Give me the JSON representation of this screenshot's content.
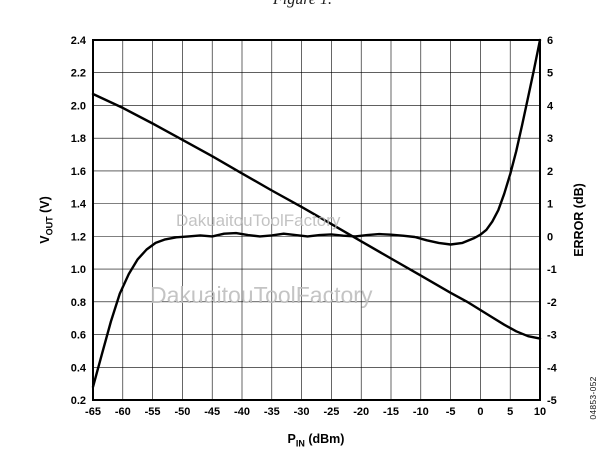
{
  "figure_number": "04853-052",
  "watermarks": [
    "DakuaitouToolFactory",
    "DakuaitouToolFactory"
  ],
  "chart_data": {
    "type": "line",
    "title": "Figure 1.",
    "xlabel": {
      "main": "P",
      "sub": "IN",
      "rest": " (dBm)"
    },
    "ylabel_left": {
      "main": "V",
      "sub": "OUT",
      "rest": " (V)"
    },
    "ylabel_right": "ERROR (dB)",
    "xlim": [
      -65,
      10
    ],
    "ylim_left": [
      0.2,
      2.4
    ],
    "ylim_right": [
      -5,
      6
    ],
    "grid": true,
    "legend": "none",
    "x_ticks": [
      "-65",
      "-60",
      "-55",
      "-50",
      "-45",
      "-40",
      "-35",
      "-30",
      "-25",
      "-20",
      "-15",
      "-10",
      "-5",
      "0",
      "5",
      "10"
    ],
    "y_ticks_left": [
      "2.4",
      "2.2",
      "2.0",
      "1.8",
      "1.6",
      "1.4",
      "1.2",
      "1.0",
      "0.8",
      "0.6",
      "0.4",
      "0.2"
    ],
    "y_ticks_right": [
      "6",
      "5",
      "4",
      "3",
      "2",
      "1",
      "0",
      "-1",
      "-2",
      "-3",
      "-4",
      "-5"
    ],
    "series": [
      {
        "name": "VOUT",
        "axis": "left",
        "x": [
          -65,
          -60,
          -55,
          -50,
          -45,
          -40,
          -35,
          -30,
          -25,
          -20,
          -15,
          -10,
          -5,
          -2,
          0,
          2,
          4,
          6,
          8,
          10
        ],
        "y": [
          2.07,
          1.985,
          1.89,
          1.79,
          1.69,
          1.585,
          1.48,
          1.38,
          1.275,
          1.17,
          1.065,
          0.96,
          0.855,
          0.795,
          0.75,
          0.705,
          0.66,
          0.62,
          0.59,
          0.575
        ]
      },
      {
        "name": "ERROR",
        "axis": "right",
        "x": [
          -65,
          -63.5,
          -62,
          -60.5,
          -59,
          -57.5,
          -56,
          -54.5,
          -53,
          -51,
          -49,
          -47,
          -45,
          -43,
          -41,
          -39,
          -37,
          -35,
          -33,
          -31,
          -29,
          -27,
          -25,
          -23,
          -21,
          -19,
          -17,
          -15,
          -13,
          -11,
          -9,
          -7,
          -5,
          -3,
          -1,
          0,
          1,
          2,
          3,
          4,
          5,
          6,
          7,
          8,
          9,
          10
        ],
        "y": [
          -4.6,
          -3.6,
          -2.6,
          -1.75,
          -1.15,
          -0.7,
          -0.4,
          -0.2,
          -0.1,
          -0.03,
          0.0,
          0.03,
          0.0,
          0.08,
          0.1,
          0.04,
          0.0,
          0.03,
          0.08,
          0.04,
          0.0,
          0.04,
          0.06,
          0.02,
          0.0,
          0.04,
          0.07,
          0.05,
          0.02,
          -0.02,
          -0.12,
          -0.2,
          -0.25,
          -0.2,
          -0.05,
          0.05,
          0.2,
          0.45,
          0.8,
          1.3,
          1.9,
          2.6,
          3.4,
          4.25,
          5.1,
          6.0
        ]
      }
    ]
  }
}
